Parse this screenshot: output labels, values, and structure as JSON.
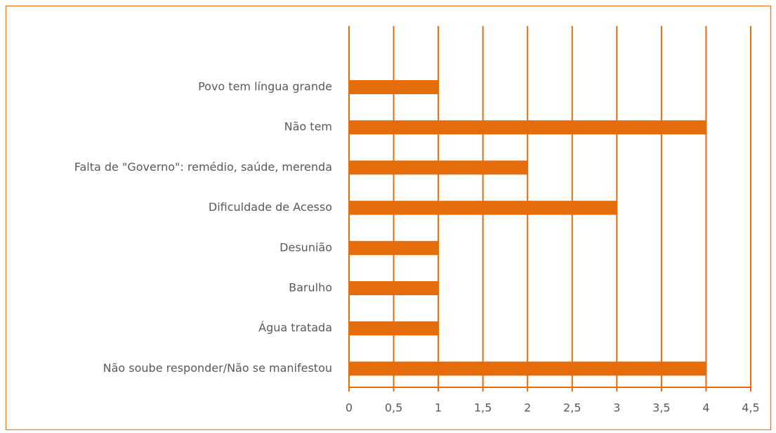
{
  "chart_data": {
    "type": "bar",
    "orientation": "horizontal",
    "categories": [
      "Povo tem língua grande",
      "Não tem",
      "Falta de \"Governo\": remédio, saúde, merenda",
      "Dificuldade de Acesso",
      "Desunião",
      "Barulho",
      "Água tratada",
      "Não soube responder/Não se manifestou"
    ],
    "values": [
      1,
      4,
      2,
      3,
      1,
      1,
      1,
      4
    ],
    "color": "#e46c0a",
    "xlim": [
      0,
      4.5
    ],
    "xticks": [
      0,
      {
        "value": 0.5,
        "label": "0,5"
      },
      1,
      {
        "value": 1.5,
        "label": "1,5"
      },
      2,
      {
        "value": 2.5,
        "label": "2,5"
      },
      3,
      {
        "value": 3.5,
        "label": "3,5"
      },
      4,
      {
        "value": 4.5,
        "label": "4,5"
      }
    ],
    "grid": true
  }
}
